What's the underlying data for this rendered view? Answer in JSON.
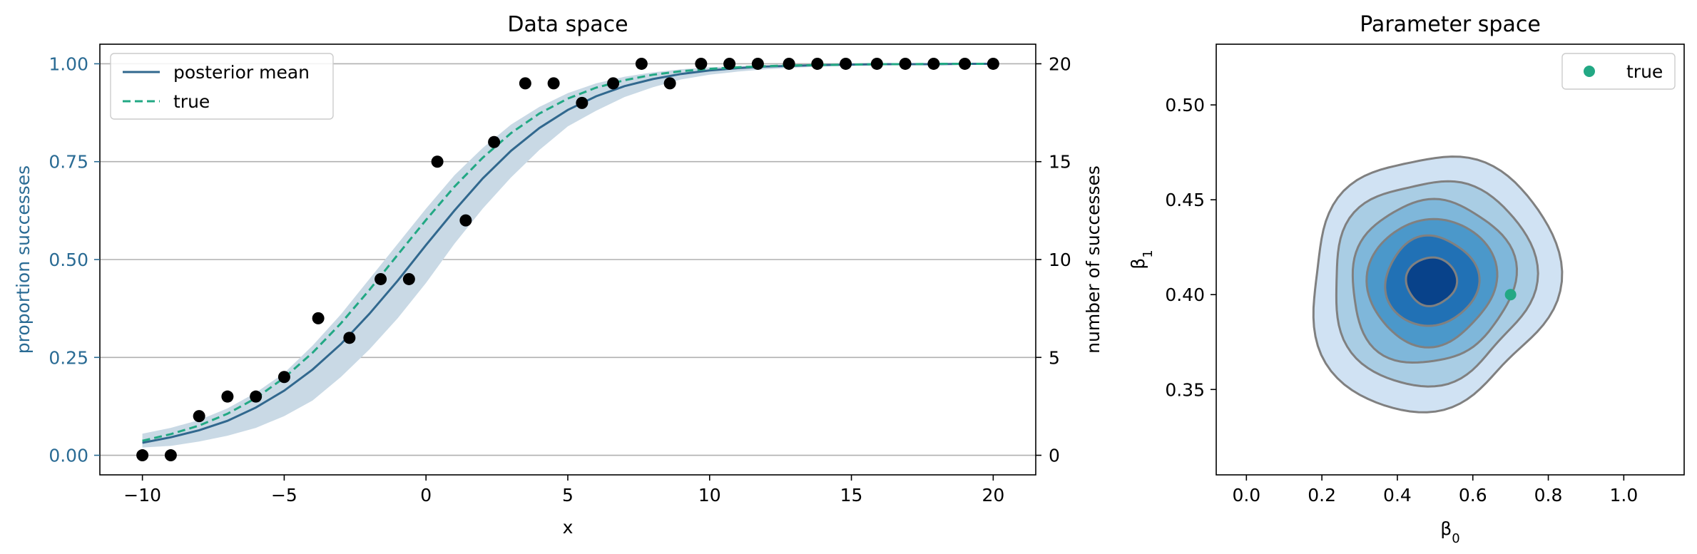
{
  "chart_data": [
    {
      "type": "line",
      "title": "Data space",
      "xlabel": "x",
      "ylabel": "proportion successes",
      "ylabel_right": "number of successes",
      "xlim": [
        -11.5,
        21.5
      ],
      "ylim": [
        -0.05,
        1.05
      ],
      "ylim_right": [
        -1,
        21
      ],
      "xticks": [
        -10,
        -5,
        0,
        5,
        10,
        15,
        20
      ],
      "xtick_labels": [
        "−10",
        "−5",
        "0",
        "5",
        "10",
        "15",
        "20"
      ],
      "yticks": [
        0.0,
        0.25,
        0.5,
        0.75,
        1.0
      ],
      "ytick_labels": [
        "0.00",
        "0.25",
        "0.50",
        "0.75",
        "1.00"
      ],
      "yticks_right": [
        0,
        5,
        10,
        15,
        20
      ],
      "ytick_labels_right": [
        "0",
        "5",
        "10",
        "15",
        "20"
      ],
      "grid": "horizontal",
      "legend": "top-left",
      "left_axis_color": "#2a6b94",
      "colors": {
        "posterior_mean": "#31688e",
        "band": "#c9d9e5",
        "true_curve": "#22a884",
        "points": "#000000"
      },
      "series": [
        {
          "name": "posterior mean",
          "style": "solid",
          "x": [
            -10,
            -9,
            -8,
            -7,
            -6,
            -5,
            -4,
            -3,
            -2,
            -1,
            0,
            1,
            2,
            3,
            4,
            5,
            6,
            7,
            8,
            9,
            10,
            11,
            12,
            13,
            14,
            15,
            16,
            17,
            18,
            19,
            20
          ],
          "y": [
            0.032,
            0.046,
            0.064,
            0.088,
            0.122,
            0.165,
            0.219,
            0.284,
            0.361,
            0.446,
            0.537,
            0.625,
            0.707,
            0.778,
            0.836,
            0.882,
            0.917,
            0.943,
            0.961,
            0.974,
            0.983,
            0.989,
            0.993,
            0.995,
            0.997,
            0.998,
            0.999,
            0.999,
            0.999,
            1.0,
            1.0
          ]
        },
        {
          "name": "true",
          "style": "dashed",
          "x": [
            -10,
            -9,
            -8,
            -7,
            -6,
            -5,
            -4,
            -3,
            -2,
            -1,
            0,
            1,
            2,
            3,
            4,
            5,
            6,
            7,
            8,
            9,
            10,
            11,
            12,
            13,
            14,
            15,
            16,
            17,
            18,
            19,
            20
          ],
          "y": [
            0.037,
            0.054,
            0.076,
            0.106,
            0.146,
            0.198,
            0.262,
            0.337,
            0.422,
            0.512,
            0.601,
            0.686,
            0.76,
            0.823,
            0.873,
            0.911,
            0.939,
            0.958,
            0.972,
            0.981,
            0.987,
            0.991,
            0.994,
            0.996,
            0.997,
            0.998,
            0.999,
            0.999,
            1.0,
            1.0,
            1.0
          ]
        }
      ],
      "band": {
        "x": [
          -10,
          -9,
          -8,
          -7,
          -6,
          -5,
          -4,
          -3,
          -2,
          -1,
          0,
          1,
          2,
          3,
          4,
          5,
          6,
          7,
          8,
          9,
          10,
          11,
          12,
          13,
          14,
          15,
          16,
          17,
          18,
          19,
          20
        ],
        "lower": [
          0.02,
          0.024,
          0.035,
          0.05,
          0.07,
          0.1,
          0.14,
          0.2,
          0.27,
          0.35,
          0.44,
          0.54,
          0.63,
          0.71,
          0.78,
          0.84,
          0.88,
          0.915,
          0.94,
          0.96,
          0.972,
          0.98,
          0.986,
          0.99,
          0.993,
          0.995,
          0.996,
          0.997,
          0.998,
          0.998,
          0.999
        ],
        "upper": [
          0.055,
          0.07,
          0.09,
          0.12,
          0.16,
          0.21,
          0.28,
          0.36,
          0.45,
          0.54,
          0.63,
          0.715,
          0.785,
          0.845,
          0.89,
          0.925,
          0.95,
          0.967,
          0.978,
          0.986,
          0.991,
          0.994,
          0.996,
          0.997,
          0.998,
          0.999,
          0.999,
          1.0,
          1.0,
          1.0,
          1.0
        ]
      },
      "points": {
        "x": [
          -10,
          -9,
          -8,
          -7,
          -6,
          -5,
          -3.8,
          -2.7,
          -1.6,
          -0.6,
          0.4,
          1.4,
          2.4,
          3.5,
          4.5,
          5.5,
          6.6,
          7.6,
          8.6,
          9.7,
          10.7,
          11.7,
          12.8,
          13.8,
          14.8,
          15.9,
          16.9,
          17.9,
          19,
          20
        ],
        "y": [
          0.0,
          0.0,
          0.1,
          0.15,
          0.15,
          0.2,
          0.35,
          0.3,
          0.45,
          0.45,
          0.75,
          0.6,
          0.8,
          0.95,
          0.95,
          0.9,
          0.95,
          1.0,
          0.95,
          1.0,
          1.0,
          1.0,
          1.0,
          1.0,
          1.0,
          1.0,
          1.0,
          1.0,
          1.0,
          1.0
        ]
      }
    },
    {
      "type": "contour",
      "title": "Parameter space",
      "xlabel": "β0",
      "ylabel": "β1",
      "xlim": [
        -0.08,
        1.16
      ],
      "ylim": [
        0.305,
        0.532
      ],
      "xticks": [
        0.0,
        0.2,
        0.4,
        0.6,
        0.8,
        1.0
      ],
      "xtick_labels": [
        "0.0",
        "0.2",
        "0.4",
        "0.6",
        "0.8",
        "1.0"
      ],
      "yticks": [
        0.35,
        0.4,
        0.45,
        0.5
      ],
      "ytick_labels": [
        "0.35",
        "0.40",
        "0.45",
        "0.50"
      ],
      "grid": false,
      "legend": "top-right",
      "colors": {
        "contour_line": "#808080",
        "true_point": "#22a884"
      },
      "fill_colors": [
        "#d0e2f3",
        "#a9cde4",
        "#7fb7da",
        "#4b98ca",
        "#2171b5",
        "#08428a"
      ],
      "kde_center": [
        0.49,
        0.407
      ],
      "kde_half_width_x": [
        0.32,
        0.26,
        0.21,
        0.165,
        0.12,
        0.065
      ],
      "kde_half_height_y": [
        0.068,
        0.055,
        0.044,
        0.034,
        0.024,
        0.013
      ],
      "true_point": {
        "name": "true",
        "x": 0.7,
        "y": 0.4
      }
    }
  ]
}
